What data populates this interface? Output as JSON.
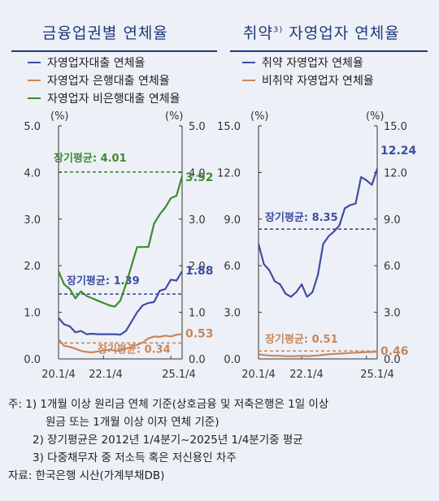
{
  "chart_data": [
    {
      "type": "line",
      "title": "금융업권별 연체율",
      "unit_left": "(%)",
      "unit_right": "(%)",
      "ylim": [
        0,
        5
      ],
      "yticks": [
        "0.0",
        "1.0",
        "2.0",
        "3.0",
        "4.0",
        "5.0"
      ],
      "x_ticks": [
        "20.1/4",
        "22.1/4",
        "25.1/4"
      ],
      "x_tick_index": [
        0,
        8,
        20
      ],
      "series": [
        {
          "name": "자영업자대출 연체율",
          "color": "#3d4fa0",
          "values": [
            0.88,
            0.74,
            0.7,
            0.57,
            0.6,
            0.53,
            0.54,
            0.53,
            0.53,
            0.53,
            0.53,
            0.52,
            0.6,
            0.8,
            1.0,
            1.15,
            1.2,
            1.22,
            1.46,
            1.5,
            1.7,
            1.68,
            1.88
          ],
          "end_label": "1.88",
          "avg": 1.39,
          "avg_label": "장기평균: 1.39"
        },
        {
          "name": "자영업자 은행대출 연체율",
          "color": "#c8875a",
          "values": [
            0.42,
            0.28,
            0.26,
            0.22,
            0.17,
            0.15,
            0.14,
            0.16,
            0.18,
            0.2,
            0.18,
            0.17,
            0.22,
            0.26,
            0.3,
            0.35,
            0.44,
            0.48,
            0.47,
            0.5,
            0.48,
            0.52,
            0.53
          ],
          "end_label": "0.53",
          "avg": 0.34,
          "avg_label": "장기평균: 0.34"
        },
        {
          "name": "자영업자 비은행대출 연체율",
          "color": "#3e8a2e",
          "values": [
            1.88,
            1.6,
            1.5,
            1.3,
            1.45,
            1.35,
            1.3,
            1.25,
            1.2,
            1.15,
            1.12,
            1.25,
            1.6,
            2.0,
            2.4,
            2.4,
            2.4,
            2.9,
            3.1,
            3.25,
            3.45,
            3.5,
            3.92
          ],
          "end_label": "3.92",
          "avg": 4.01,
          "avg_label": "장기평균: 4.01"
        }
      ]
    },
    {
      "type": "line",
      "title": "취약 자영업자 연체율",
      "title_sup": "3)",
      "unit_left": "(%)",
      "unit_right": "(%)",
      "ylim": [
        0,
        15
      ],
      "yticks": [
        "0.0",
        "3.0",
        "6.0",
        "9.0",
        "12.0",
        "15.0"
      ],
      "x_ticks": [
        "20.1/4",
        "22.1/4",
        "25.1/4"
      ],
      "x_tick_index": [
        0,
        8,
        20
      ],
      "series": [
        {
          "name": "취약 자영업자 연체율",
          "color": "#3d4fa0",
          "values": [
            7.4,
            6.1,
            5.7,
            5.0,
            4.8,
            4.2,
            4.0,
            4.3,
            4.8,
            4.0,
            4.3,
            5.4,
            7.4,
            7.9,
            8.2,
            8.6,
            9.7,
            9.9,
            10.0,
            11.7,
            11.5,
            11.2,
            12.24
          ],
          "end_label": "12.24",
          "avg": 8.35,
          "avg_label": "장기평균: 8.35"
        },
        {
          "name": "비취약 자영업자 연체율",
          "color": "#c8875a",
          "values": [
            0.3,
            0.25,
            0.22,
            0.2,
            0.2,
            0.18,
            0.17,
            0.18,
            0.2,
            0.18,
            0.2,
            0.22,
            0.26,
            0.3,
            0.32,
            0.34,
            0.36,
            0.38,
            0.4,
            0.42,
            0.44,
            0.45,
            0.46
          ],
          "end_label": "0.46",
          "avg": 0.51,
          "avg_label": "장기평균: 0.51"
        }
      ]
    }
  ],
  "notes": [
    "주: 1) 1개월 이상 원리금 연체 기준(상호금융 및 저축은행은 1일 이상",
    "원금 또는 1개월 이상 이자 연체 기준)",
    "2) 장기평균은 2012년 1/4분기~2025년 1/4분기중 평균",
    "3) 다중채무자 중 저소득 혹은 저신용인 차주",
    "자료: 한국은행 시산(가계부채DB)"
  ]
}
